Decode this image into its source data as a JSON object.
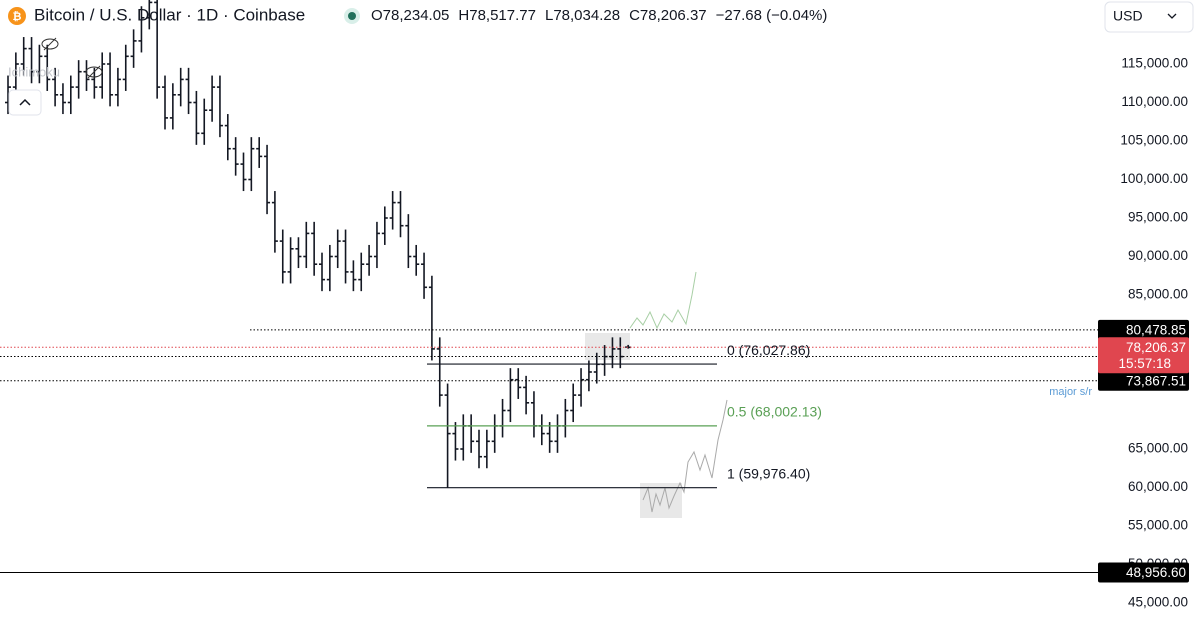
{
  "chart_data": {
    "type": "ohlc",
    "title": "Bitcoin / U.S. Dollar · 1D · Coinbase",
    "header_ohlc": [
      "O78,234.05",
      "H78,517.77",
      "L78,034.28",
      "C78,206.37",
      "−27.68 (−0.04%)"
    ],
    "currency": "USD",
    "indicator": "Ichimoku",
    "color": "#131722",
    "open": [
      110000,
      112000,
      115000,
      117000,
      114000,
      116000,
      113000,
      111000,
      110000,
      112000,
      114000,
      113000,
      112000,
      115000,
      111000,
      113000,
      116000,
      118000,
      121000,
      123000,
      112000,
      108000,
      111000,
      113000,
      110000,
      106000,
      109000,
      112000,
      107000,
      104000,
      102000,
      100000,
      104000,
      103000,
      97000,
      92000,
      88000,
      91000,
      90000,
      93000,
      89000,
      87000,
      90000,
      92000,
      88000,
      87000,
      89000,
      90000,
      93000,
      95000,
      97000,
      94000,
      90000,
      89000,
      86000,
      78000,
      72000,
      67000,
      65000,
      68000,
      66000,
      64000,
      66000,
      68000,
      70000,
      74000,
      73000,
      71000,
      68000,
      67000,
      66000,
      68000,
      70000,
      72000,
      74000,
      75000,
      76000,
      77000,
      78000,
      78234.05
    ],
    "high": [
      113500,
      116500,
      118500,
      118500,
      117500,
      117500,
      114500,
      112500,
      113500,
      115500,
      115500,
      114500,
      116500,
      116500,
      114500,
      117500,
      119500,
      122500,
      124500,
      124500,
      113500,
      112500,
      114500,
      114500,
      111500,
      110500,
      113500,
      113500,
      108500,
      105500,
      103500,
      105500,
      105500,
      104500,
      98500,
      93500,
      92500,
      92500,
      94500,
      94500,
      90500,
      91500,
      93500,
      93500,
      89500,
      90500,
      91500,
      94500,
      96500,
      98500,
      98500,
      95500,
      91500,
      90500,
      87500,
      79500,
      73500,
      68500,
      69500,
      69500,
      67500,
      67500,
      69500,
      71500,
      75500,
      75500,
      74500,
      72500,
      69500,
      68500,
      69500,
      71500,
      73500,
      75500,
      76500,
      77500,
      78500,
      79500,
      79500,
      78517.77
    ],
    "low": [
      108500,
      110500,
      113500,
      112500,
      112500,
      111500,
      109500,
      108500,
      108500,
      110500,
      111500,
      110500,
      110500,
      109500,
      109500,
      111500,
      114500,
      116500,
      119500,
      110500,
      106500,
      106500,
      109500,
      108500,
      104500,
      104500,
      107500,
      105500,
      102500,
      100500,
      98500,
      98500,
      101500,
      95500,
      90500,
      86500,
      86500,
      88500,
      88500,
      87500,
      85500,
      85500,
      88500,
      86500,
      85500,
      85500,
      87500,
      88500,
      91500,
      93500,
      92500,
      88500,
      87500,
      84500,
      76500,
      70500,
      60000,
      63500,
      63500,
      64500,
      62500,
      62500,
      64500,
      66500,
      68500,
      71500,
      69500,
      66500,
      65500,
      64500,
      64500,
      66500,
      68500,
      70500,
      72500,
      73500,
      74500,
      75500,
      75500,
      78034.28
    ],
    "close": [
      112000,
      115000,
      117000,
      114000,
      116000,
      113000,
      111000,
      110000,
      112000,
      114000,
      113000,
      112000,
      115000,
      111000,
      113000,
      116000,
      118000,
      121000,
      123000,
      112000,
      108000,
      111000,
      113000,
      110000,
      106000,
      109000,
      112000,
      107000,
      104000,
      102000,
      100000,
      104000,
      103000,
      97000,
      92000,
      88000,
      91000,
      90000,
      93000,
      89000,
      87000,
      90000,
      92000,
      88000,
      87000,
      89000,
      90000,
      93000,
      95000,
      97000,
      94000,
      90000,
      89000,
      86000,
      78000,
      72000,
      67000,
      65000,
      68000,
      66000,
      64000,
      66000,
      68000,
      70000,
      74000,
      73000,
      71000,
      68000,
      67000,
      66000,
      68000,
      70000,
      72000,
      74000,
      75000,
      76000,
      77000,
      78000,
      77000,
      78206.37
    ],
    "ylim": [
      42662,
      123312
    ],
    "yticks": [
      {
        "value": 45000,
        "label": "45,000.00"
      },
      {
        "value": 50000,
        "label": "50,000.00"
      },
      {
        "value": 55000,
        "label": "55,000.00"
      },
      {
        "value": 60000,
        "label": "60,000.00"
      },
      {
        "value": 65000,
        "label": "65,000.00"
      },
      {
        "value": 85000,
        "label": "85,000.00"
      },
      {
        "value": 90000,
        "label": "90,000.00"
      },
      {
        "value": 95000,
        "label": "95,000.00"
      },
      {
        "value": 100000,
        "label": "100,000.00"
      },
      {
        "value": 105000,
        "label": "105,000.00"
      },
      {
        "value": 110000,
        "label": "110,000.00"
      },
      {
        "value": 115000,
        "label": "115,000.00"
      }
    ],
    "hlines": [
      {
        "value": 80478.85,
        "label": "80,478.85",
        "color": "#000000"
      },
      {
        "value": 77009.73,
        "label": "77,009.73",
        "color": "#000000"
      },
      {
        "value": 73867.51,
        "label": "73,867.51",
        "color": "#000000"
      },
      {
        "value": 48956.6,
        "label": "48,956.60",
        "color": "#000000"
      }
    ],
    "last_price": {
      "value": 78206.37,
      "label": "78,206.37",
      "countdown": "15:57:18",
      "color": "#e0464f"
    },
    "fib_levels": [
      {
        "value": 76027.86,
        "label": "0 (76,027.86)",
        "color": "#131722"
      },
      {
        "value": 68002.13,
        "label": "0.5 (68,002.13)",
        "color": "#5aa055"
      },
      {
        "value": 59976.4,
        "label": "1 (59,976.40)",
        "color": "#131722"
      }
    ],
    "annotation": "major s/r"
  }
}
